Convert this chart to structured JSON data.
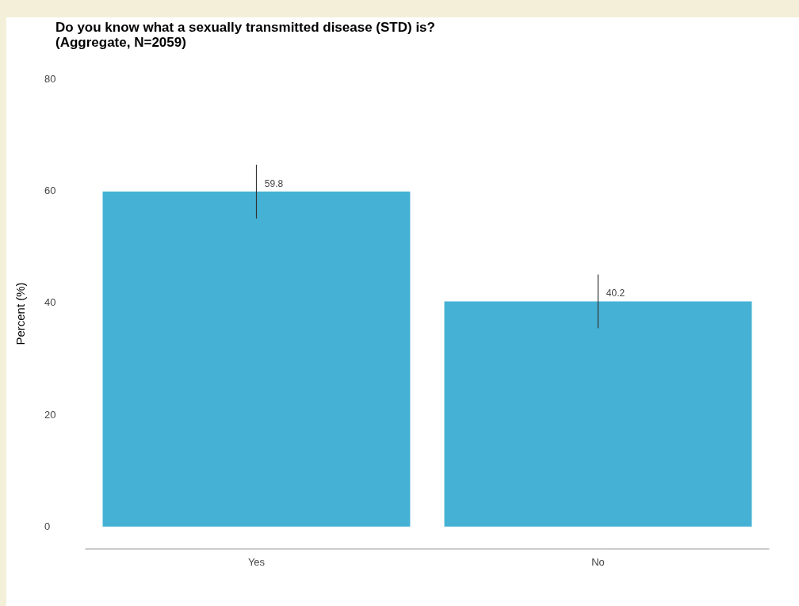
{
  "chart_data": {
    "type": "bar",
    "title": "Do you know what a sexually transmitted disease (STD) is?\n(Aggregate, N=2059)",
    "ylabel": "Percent (%)",
    "categories": [
      "Yes",
      "No"
    ],
    "values": [
      59.8,
      40.2
    ],
    "errors": [
      4.8,
      4.8
    ],
    "color": "#45b1d5",
    "data_labels": true,
    "ylim": [
      -4,
      80
    ],
    "yticks": [
      0,
      20,
      40,
      60,
      80
    ],
    "grid": false
  }
}
